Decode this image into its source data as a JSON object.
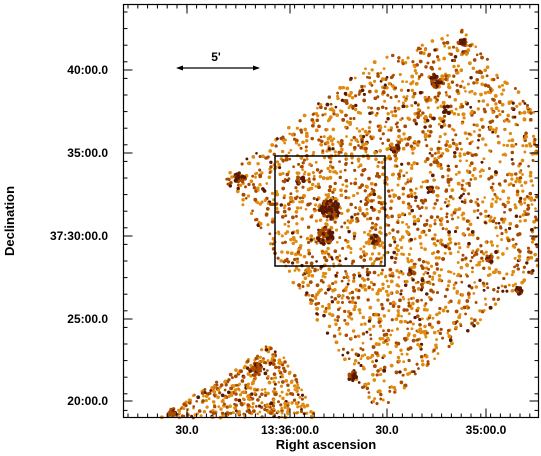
{
  "figure": {
    "x_axis_title": "Right ascension",
    "y_axis_title": "Declination",
    "x_tick_labels": [
      "30.0",
      "13:36:00.0",
      "30.0",
      "35:00.0"
    ],
    "y_tick_labels": [
      "40:00.0",
      "35:00.0",
      "37:30:00.0",
      "25:00.0",
      "20:00.0"
    ],
    "scale_bar_label": "5'",
    "colors": {
      "source_dark": "#5a1800",
      "source_mid": "#a84a00",
      "source_light": "#e08a10",
      "frame": "#000000",
      "background": "#ffffff"
    }
  }
}
